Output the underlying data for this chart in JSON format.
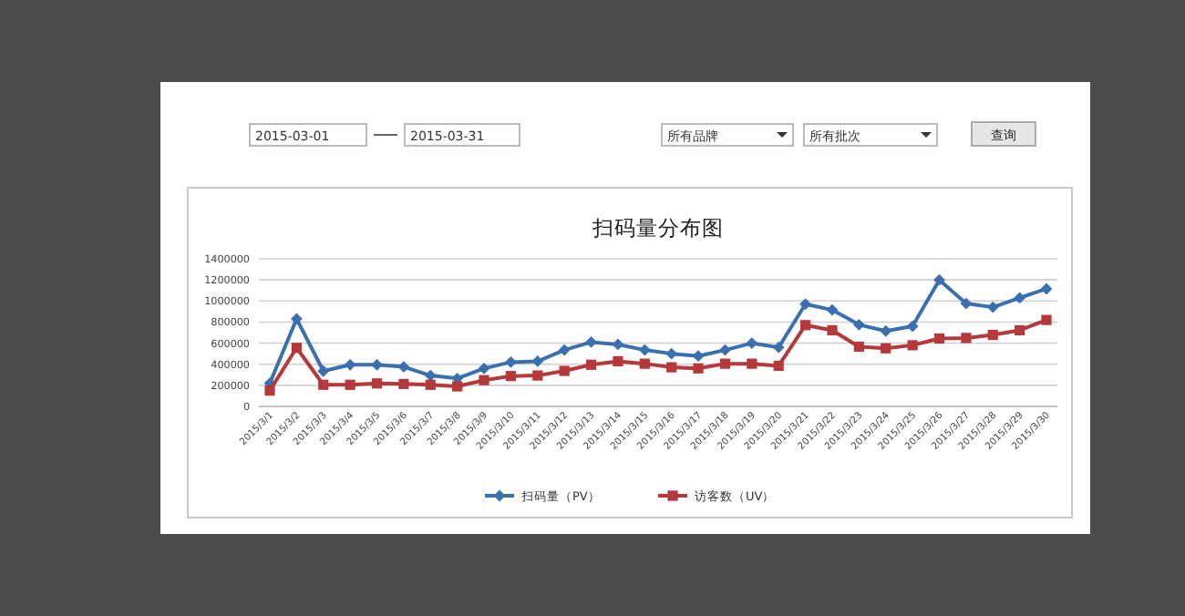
{
  "chart_data": {
    "type": "line",
    "title": "扫码量分布图",
    "categories": [
      "2015/3/1",
      "2015/3/2",
      "2015/3/3",
      "2015/3/4",
      "2015/3/5",
      "2015/3/6",
      "2015/3/7",
      "2015/3/8",
      "2015/3/9",
      "2015/3/10",
      "2015/3/11",
      "2015/3/12",
      "2015/3/13",
      "2015/3/14",
      "2015/3/15",
      "2015/3/16",
      "2015/3/17",
      "2015/3/18",
      "2015/3/19",
      "2015/3/20",
      "2015/3/21",
      "2015/3/22",
      "2015/3/23",
      "2015/3/24",
      "2015/3/25",
      "2015/3/26",
      "2015/3/27",
      "2015/3/28",
      "2015/3/29",
      "2015/3/30"
    ],
    "series": [
      {
        "name": "扫码量（PV）",
        "color": "#3a6fb0",
        "marker": "diamond",
        "values": [
          220000,
          830000,
          335000,
          395000,
          395000,
          375000,
          293000,
          265000,
          360000,
          420000,
          428000,
          535000,
          610000,
          588000,
          535000,
          500000,
          478000,
          535000,
          600000,
          560000,
          970000,
          915000,
          775000,
          715000,
          760000,
          1200000,
          976000,
          941000,
          1029000,
          1115000
        ]
      },
      {
        "name": "访客数（UV）",
        "color": "#b5393a",
        "marker": "square",
        "values": [
          150000,
          555000,
          205000,
          205000,
          218000,
          213000,
          205000,
          190000,
          249000,
          288000,
          293000,
          337000,
          395000,
          428000,
          405000,
          371000,
          361000,
          405000,
          405000,
          385000,
          771000,
          722000,
          566000,
          551000,
          580000,
          644000,
          649000,
          678000,
          722000,
          820000
        ]
      }
    ],
    "ylim": [
      0,
      1400000
    ],
    "yticks": [
      0,
      200000,
      400000,
      600000,
      800000,
      1000000,
      1200000,
      1400000
    ],
    "grid": "y",
    "legend": "bottom",
    "line_style": "solid",
    "annotations": [
      "2015-03-01",
      "2015-03-31",
      "所有品牌",
      "所有批次",
      "查询"
    ]
  }
}
